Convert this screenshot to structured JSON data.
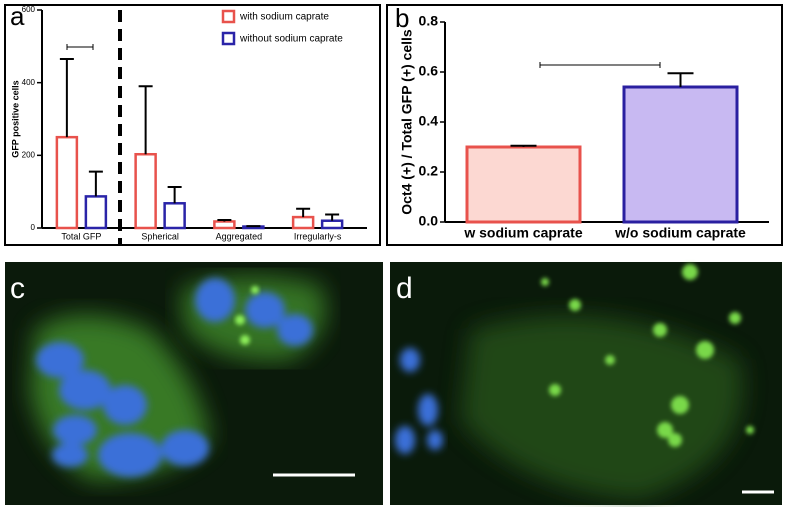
{
  "chart_data": [
    {
      "type": "bar",
      "panel_label": "a",
      "y_label": "GFP positive cells",
      "categories": [
        "Total GFP",
        "Spherical",
        "Aggregated",
        "Irregularly-s"
      ],
      "series": [
        {
          "name": "with sodium caprate",
          "color": "#e8524c",
          "values": [
            250,
            203,
            18,
            30
          ],
          "errors": [
            215,
            187,
            4,
            23
          ]
        },
        {
          "name": "without sodium caprate",
          "color": "#2a24a8",
          "values": [
            87,
            68,
            4,
            20
          ],
          "errors": [
            68,
            45,
            1,
            17
          ]
        }
      ],
      "ylim": [
        0,
        600
      ],
      "yticks": [
        0,
        200,
        400,
        600
      ]
    },
    {
      "type": "bar",
      "panel_label": "b",
      "y_label": "Oct4 (+) / Total GFP (+) cells",
      "categories": [
        "w sodium caprate",
        "w/o sodium caprate"
      ],
      "values": [
        0.3,
        0.54
      ],
      "errors": [
        0.005,
        0.055
      ],
      "colors": [
        "#fcd8d2",
        "#c8b9f2"
      ],
      "edge_colors": [
        "#e8524c",
        "#2a1fa0"
      ],
      "ylim": [
        0,
        0.8
      ],
      "yticks": [
        {
          "value": 0,
          "label": "0.0"
        },
        0.2,
        0.4,
        0.6,
        0.8
      ]
    }
  ],
  "images": [
    {
      "label": "c"
    },
    {
      "label": "d"
    }
  ]
}
